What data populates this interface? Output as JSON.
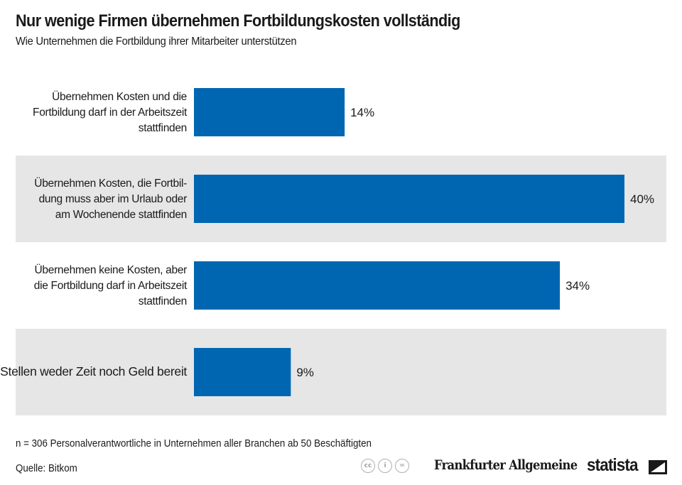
{
  "header": {
    "title": "Nur wenige Firmen übernehmen Fortbildungskosten vollständig",
    "subtitle": "Wie Unternehmen die Fortbildung ihrer Mitarbeiter unterstützen"
  },
  "chart_data": {
    "type": "bar",
    "orientation": "horizontal",
    "title": "Nur wenige Firmen übernehmen Fortbildungskosten vollständig",
    "subtitle": "Wie Unternehmen die Fortbildung ihrer Mitarbeiter unterstützen",
    "categories": [
      [
        "Übernehmen Kosten und die",
        "Fortbildung darf in der Arbeitszeit",
        "stattfinden"
      ],
      [
        "Übernehmen Kosten, die Fortbil-",
        "dung muss aber im Urlaub oder",
        "am Wochenende stattfinden"
      ],
      [
        "Übernehmen keine Kosten, aber",
        "die Fortbildung darf in Arbeitszeit",
        "stattfinden"
      ],
      [
        "Stellen weder Zeit noch Geld bereit"
      ]
    ],
    "values": [
      14,
      40,
      34,
      9
    ],
    "value_labels": [
      "14%",
      "40%",
      "34%",
      "9%"
    ],
    "unit": "%",
    "bar_color": "#0066b2",
    "band_color": "#e6e6e6",
    "grid": false,
    "legend": "none"
  },
  "footer": {
    "note": "n = 306 Personalverantwortliche in Unternehmen aller Branchen ab 50 Beschäftigten",
    "source": "Quelle: Bitkom",
    "license_icons": [
      "cc",
      "i",
      "="
    ],
    "partner_logo": "Frankfurter Allgemeine",
    "brand": "statista"
  }
}
